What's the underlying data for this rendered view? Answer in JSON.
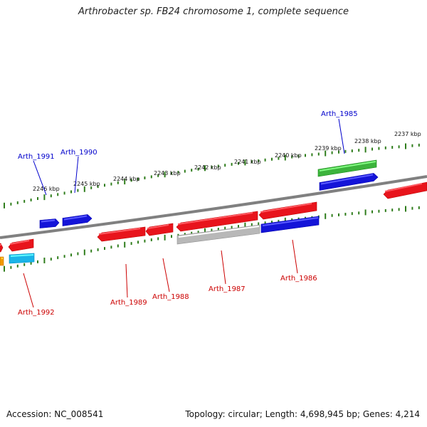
{
  "title": "Arthrobacter sp. FB24 chromosome 1, complete sequence",
  "footer": {
    "accession": "Accession: NC_008541",
    "summary": "Topology: circular; Length: 4,698,945 bp; Genes: 4,214"
  },
  "colors": {
    "backbone": "#7a7a7a",
    "tick": "#2f7d1c",
    "forward_label": "#0000cc",
    "reverse_label": "#cc0000",
    "red": "#e8141c",
    "blue": "#1414d8",
    "green": "#3cb33c",
    "gray": "#b8b8b8",
    "cyan": "#1ab4e8",
    "orange": "#f29a00"
  },
  "kbp_labels": [
    "2237 kbp",
    "2238 kbp",
    "2239 kbp",
    "2240 kbp",
    "2241 kbp",
    "2242 kbp",
    "2243 kbp",
    "2244 kbp",
    "2245 kbp",
    "2246 kbp"
  ],
  "genes": {
    "forward": [
      "Arth_1985",
      "Arth_1990",
      "Arth_1991"
    ],
    "reverse": [
      "Arth_1986",
      "Arth_1987",
      "Arth_1988",
      "Arth_1989",
      "Arth_1992"
    ]
  }
}
